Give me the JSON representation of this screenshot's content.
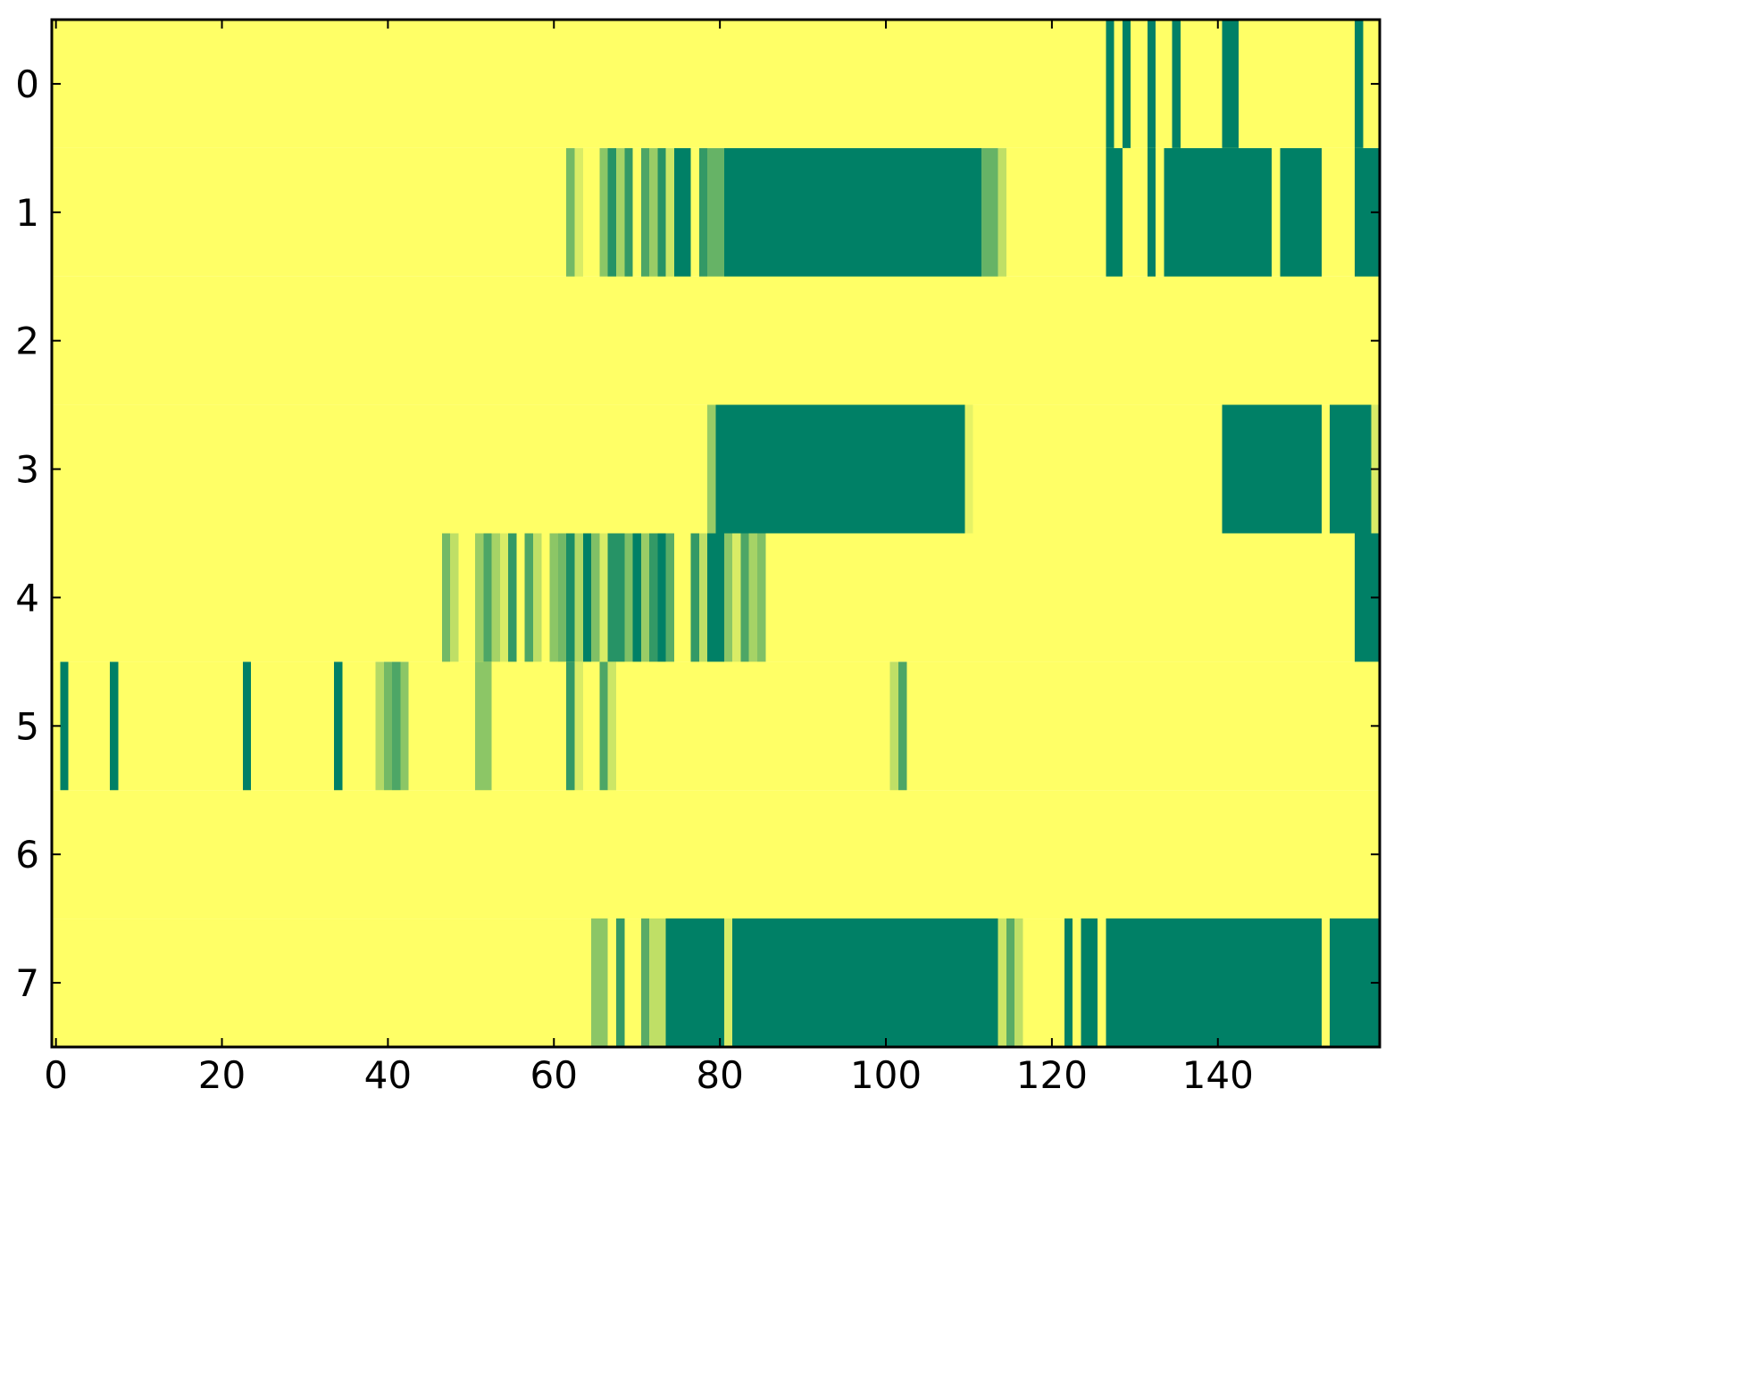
{
  "chart_data": {
    "type": "heatmap",
    "title": "",
    "xlabel": "",
    "ylabel": "",
    "xlim": [
      -0.5,
      159.5
    ],
    "ylim": [
      7.5,
      -0.5
    ],
    "x_ticks": [
      0,
      20,
      40,
      60,
      80,
      100,
      120,
      140
    ],
    "x_tick_labels": [
      "0",
      "20",
      "40",
      "60",
      "80",
      "100",
      "120",
      "140"
    ],
    "y_ticks": [
      0,
      1,
      2,
      3,
      4,
      5,
      6,
      7
    ],
    "y_tick_labels": [
      "0",
      "1",
      "2",
      "3",
      "4",
      "5",
      "6",
      "7"
    ],
    "grid": false,
    "colormap": "summer",
    "colormap_colors": [
      "#008066",
      "#ffff66"
    ],
    "value_range": [
      0,
      1
    ],
    "default_value": 1,
    "cells": [
      {
        "row": 0,
        "segments": [
          {
            "x0": 127,
            "x1": 128,
            "v": 0
          },
          {
            "x0": 129,
            "x1": 130,
            "v": 0
          },
          {
            "x0": 132,
            "x1": 133,
            "v": 0
          },
          {
            "x0": 135,
            "x1": 136,
            "v": 0
          },
          {
            "x0": 141,
            "x1": 143,
            "v": 0
          },
          {
            "x0": 157,
            "x1": 158,
            "v": 0
          }
        ]
      },
      {
        "row": 1,
        "segments": [
          {
            "x0": 62,
            "x1": 63,
            "v": 0.45
          },
          {
            "x0": 63,
            "x1": 64,
            "v": 0.85
          },
          {
            "x0": 66,
            "x1": 67,
            "v": 0.55
          },
          {
            "x0": 67,
            "x1": 68,
            "v": 0.15
          },
          {
            "x0": 68,
            "x1": 69,
            "v": 0.65
          },
          {
            "x0": 69,
            "x1": 70,
            "v": 0.2
          },
          {
            "x0": 71,
            "x1": 72,
            "v": 0.3
          },
          {
            "x0": 72,
            "x1": 73,
            "v": 0.6
          },
          {
            "x0": 73,
            "x1": 74,
            "v": 0.15
          },
          {
            "x0": 74,
            "x1": 75,
            "v": 0.8
          },
          {
            "x0": 75,
            "x1": 77,
            "v": 0
          },
          {
            "x0": 78,
            "x1": 79,
            "v": 0.2
          },
          {
            "x0": 79,
            "x1": 81,
            "v": 0.4
          },
          {
            "x0": 81,
            "x1": 112,
            "v": 0
          },
          {
            "x0": 112,
            "x1": 114,
            "v": 0.4
          },
          {
            "x0": 114,
            "x1": 115,
            "v": 0.75
          },
          {
            "x0": 127,
            "x1": 129,
            "v": 0
          },
          {
            "x0": 132,
            "x1": 133,
            "v": 0
          },
          {
            "x0": 134,
            "x1": 147,
            "v": 0
          },
          {
            "x0": 148,
            "x1": 153,
            "v": 0
          },
          {
            "x0": 157,
            "x1": 160,
            "v": 0
          }
        ]
      },
      {
        "row": 2,
        "segments": []
      },
      {
        "row": 3,
        "segments": [
          {
            "x0": 79,
            "x1": 80,
            "v": 0.6
          },
          {
            "x0": 80,
            "x1": 110,
            "v": 0
          },
          {
            "x0": 110,
            "x1": 111,
            "v": 0.9
          },
          {
            "x0": 141,
            "x1": 153,
            "v": 0
          },
          {
            "x0": 154,
            "x1": 159,
            "v": 0
          },
          {
            "x0": 159,
            "x1": 160,
            "v": 0.85
          }
        ]
      },
      {
        "row": 4,
        "segments": [
          {
            "x0": 47,
            "x1": 48,
            "v": 0.45
          },
          {
            "x0": 48,
            "x1": 49,
            "v": 0.75
          },
          {
            "x0": 51,
            "x1": 52,
            "v": 0.6
          },
          {
            "x0": 52,
            "x1": 53,
            "v": 0.3
          },
          {
            "x0": 53,
            "x1": 54,
            "v": 0.65
          },
          {
            "x0": 54,
            "x1": 55,
            "v": 0.85
          },
          {
            "x0": 55,
            "x1": 56,
            "v": 0.2
          },
          {
            "x0": 57,
            "x1": 58,
            "v": 0.3
          },
          {
            "x0": 58,
            "x1": 59,
            "v": 0.75
          },
          {
            "x0": 60,
            "x1": 61,
            "v": 0.55
          },
          {
            "x0": 61,
            "x1": 62,
            "v": 0.45
          },
          {
            "x0": 62,
            "x1": 63,
            "v": 0.1
          },
          {
            "x0": 63,
            "x1": 64,
            "v": 0.7
          },
          {
            "x0": 64,
            "x1": 65,
            "v": 0
          },
          {
            "x0": 65,
            "x1": 66,
            "v": 0.5
          },
          {
            "x0": 66,
            "x1": 67,
            "v": 0.85
          },
          {
            "x0": 67,
            "x1": 69,
            "v": 0.15
          },
          {
            "x0": 69,
            "x1": 70,
            "v": 0.5
          },
          {
            "x0": 70,
            "x1": 71,
            "v": 0
          },
          {
            "x0": 71,
            "x1": 72,
            "v": 0.6
          },
          {
            "x0": 72,
            "x1": 73,
            "v": 0.2
          },
          {
            "x0": 73,
            "x1": 74,
            "v": 0
          },
          {
            "x0": 74,
            "x1": 75,
            "v": 0.35
          },
          {
            "x0": 77,
            "x1": 78,
            "v": 0.2
          },
          {
            "x0": 78,
            "x1": 79,
            "v": 0.75
          },
          {
            "x0": 79,
            "x1": 81,
            "v": 0
          },
          {
            "x0": 81,
            "x1": 82,
            "v": 0.55
          },
          {
            "x0": 82,
            "x1": 83,
            "v": 0.85
          },
          {
            "x0": 83,
            "x1": 84,
            "v": 0.3
          },
          {
            "x0": 84,
            "x1": 85,
            "v": 0.65
          },
          {
            "x0": 85,
            "x1": 86,
            "v": 0.5
          },
          {
            "x0": 157,
            "x1": 160,
            "v": 0
          }
        ]
      },
      {
        "row": 5,
        "segments": [
          {
            "x0": 1,
            "x1": 2,
            "v": 0
          },
          {
            "x0": 7,
            "x1": 8,
            "v": 0
          },
          {
            "x0": 23,
            "x1": 24,
            "v": 0
          },
          {
            "x0": 34,
            "x1": 35,
            "v": 0
          },
          {
            "x0": 39,
            "x1": 40,
            "v": 0.7
          },
          {
            "x0": 40,
            "x1": 41,
            "v": 0.45
          },
          {
            "x0": 41,
            "x1": 42,
            "v": 0.3
          },
          {
            "x0": 42,
            "x1": 43,
            "v": 0.55
          },
          {
            "x0": 51,
            "x1": 53,
            "v": 0.55
          },
          {
            "x0": 62,
            "x1": 63,
            "v": 0.2
          },
          {
            "x0": 63,
            "x1": 64,
            "v": 0.85
          },
          {
            "x0": 66,
            "x1": 67,
            "v": 0.3
          },
          {
            "x0": 67,
            "x1": 68,
            "v": 0.8
          },
          {
            "x0": 101,
            "x1": 102,
            "v": 0.75
          },
          {
            "x0": 102,
            "x1": 103,
            "v": 0.3
          }
        ]
      },
      {
        "row": 6,
        "segments": []
      },
      {
        "row": 7,
        "segments": [
          {
            "x0": 65,
            "x1": 67,
            "v": 0.55
          },
          {
            "x0": 68,
            "x1": 69,
            "v": 0.2
          },
          {
            "x0": 71,
            "x1": 72,
            "v": 0.35
          },
          {
            "x0": 72,
            "x1": 74,
            "v": 0.75
          },
          {
            "x0": 74,
            "x1": 81,
            "v": 0
          },
          {
            "x0": 81,
            "x1": 82,
            "v": 0.85
          },
          {
            "x0": 82,
            "x1": 114,
            "v": 0
          },
          {
            "x0": 114,
            "x1": 115,
            "v": 0.8
          },
          {
            "x0": 115,
            "x1": 116,
            "v": 0.35
          },
          {
            "x0": 116,
            "x1": 117,
            "v": 0.75
          },
          {
            "x0": 122,
            "x1": 123,
            "v": 0
          },
          {
            "x0": 124,
            "x1": 126,
            "v": 0
          },
          {
            "x0": 127,
            "x1": 153,
            "v": 0
          },
          {
            "x0": 154,
            "x1": 160,
            "v": 0
          }
        ]
      }
    ]
  }
}
